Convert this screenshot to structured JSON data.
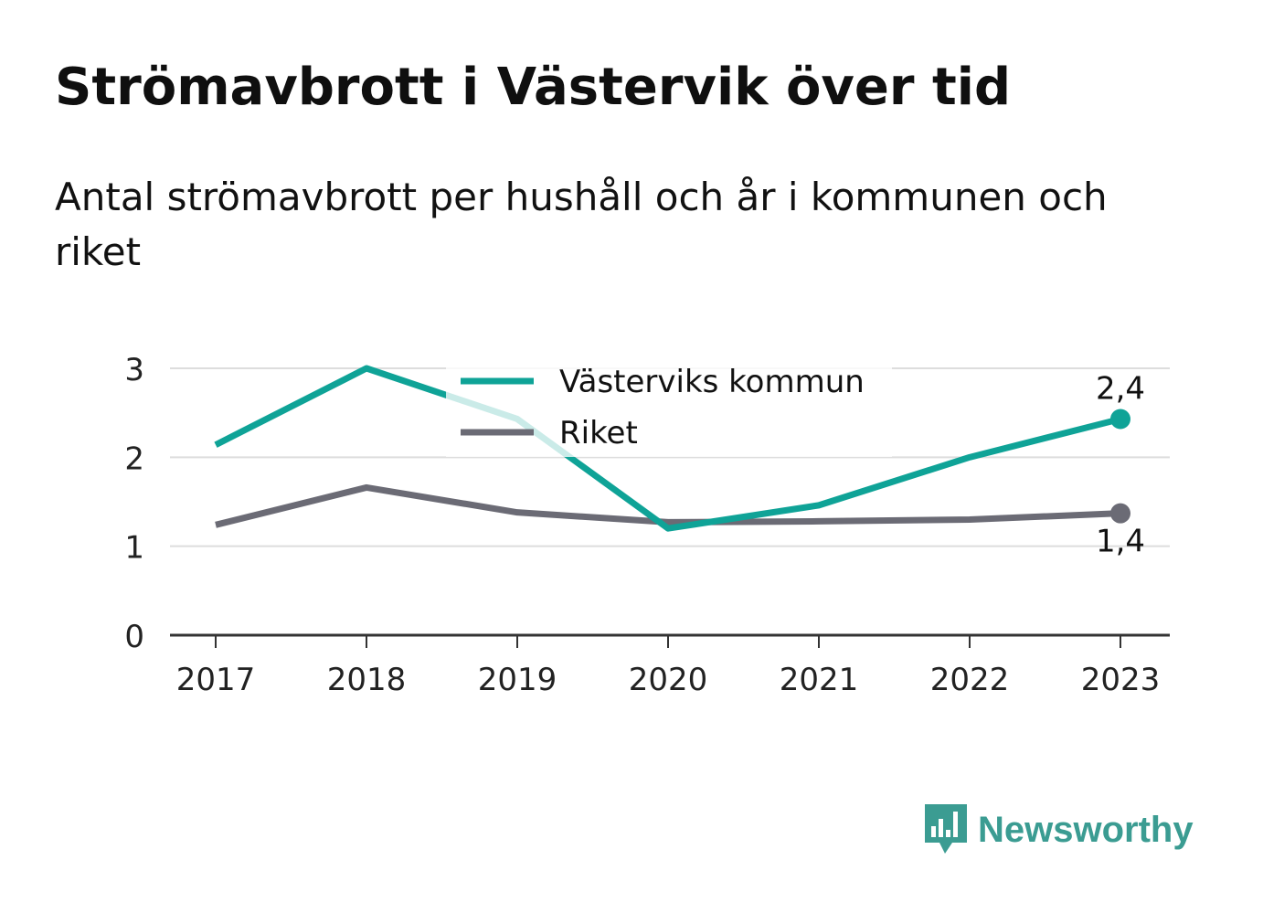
{
  "title": "Strömavbrott i Västervik över tid",
  "subtitle": "Antal strömavbrott per hushåll och år i kommunen och riket",
  "brand": {
    "name": "Newsworthy",
    "color": "#3b9c92",
    "icon": "bar-chart-speech-bubble-icon"
  },
  "chart_data": {
    "type": "line",
    "title": "Strömavbrott i Västervik över tid",
    "subtitle": "Antal strömavbrott per hushåll och år i kommunen och riket",
    "x": [
      "2017",
      "2018",
      "2019",
      "2020",
      "2021",
      "2022",
      "2023"
    ],
    "ylim": [
      0,
      3
    ],
    "yticks": [
      "0",
      "1",
      "2",
      "3"
    ],
    "grid": true,
    "legend": "top-center",
    "series": [
      {
        "name": "Västerviks kommun",
        "color": "#0fa397",
        "values": [
          2.14,
          3.0,
          2.43,
          1.2,
          1.46,
          2.0,
          2.43
        ],
        "end_label": "2,4"
      },
      {
        "name": "Riket",
        "color": "#6b6b75",
        "values": [
          1.24,
          1.66,
          1.38,
          1.27,
          1.28,
          1.3,
          1.37
        ],
        "end_label": "1,4"
      }
    ]
  }
}
